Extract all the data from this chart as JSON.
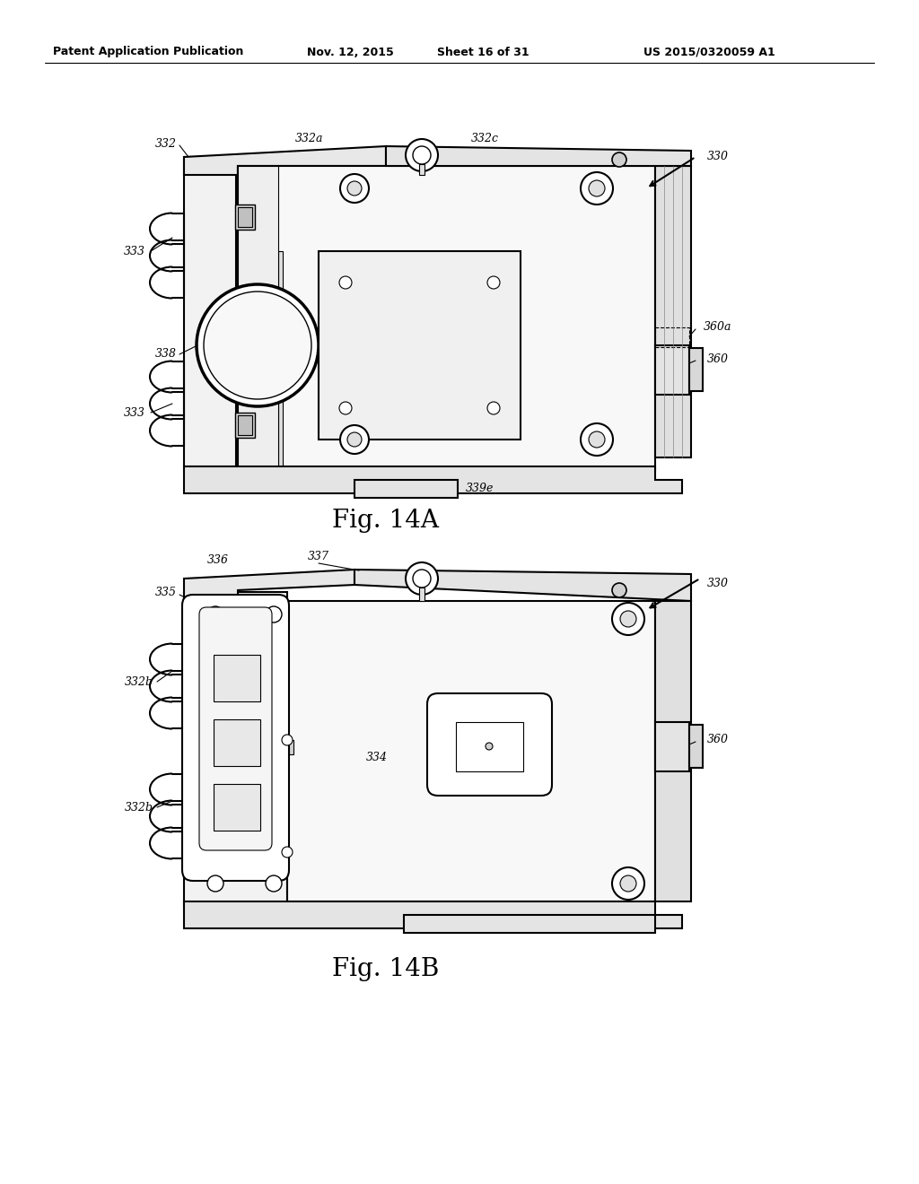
{
  "bg_color": "#ffffff",
  "header_text": "Patent Application Publication",
  "header_date": "Nov. 12, 2015",
  "header_sheet": "Sheet 16 of 31",
  "header_patent": "US 2015/0320059 A1",
  "fig_a_label": "Fig. 14A",
  "fig_b_label": "Fig. 14B",
  "lc": "#000000",
  "lw": 1.5,
  "tlw": 0.8
}
